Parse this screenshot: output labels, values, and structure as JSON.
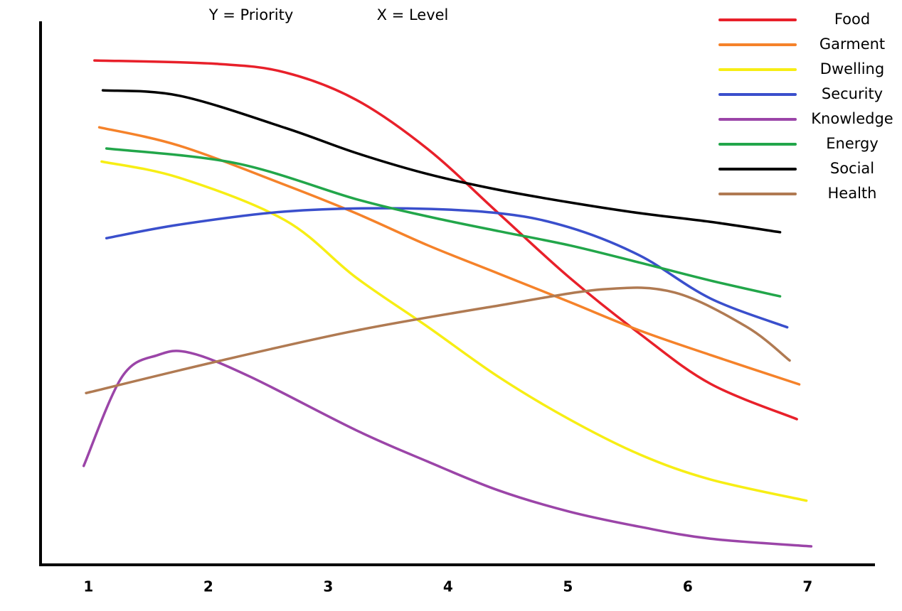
{
  "chart_data": {
    "type": "line",
    "annotations": [
      "Y = Priority",
      "X = Level"
    ],
    "xlim": [
      0.6,
      7.55
    ],
    "xticks": [
      1,
      2,
      3,
      4,
      5,
      6,
      7
    ],
    "ylim": [
      0,
      100
    ],
    "legend": "upper right",
    "series": [
      {
        "name": "Food",
        "color": "#e8202a",
        "x": [
          1.05,
          2.05,
          2.64,
          3.23,
          3.83,
          4.42,
          5.01,
          5.6,
          6.19,
          6.91
        ],
        "values": [
          92.8,
          92.2,
          90.6,
          85.6,
          76.5,
          64.7,
          52.9,
          42.5,
          33.3,
          26.8
        ]
      },
      {
        "name": "Garment",
        "color": "#f5822a",
        "x": [
          1.09,
          1.76,
          2.64,
          3.23,
          3.83,
          4.42,
          5.01,
          5.6,
          6.19,
          6.93
        ],
        "values": [
          80.5,
          77.1,
          69.9,
          64.7,
          58.8,
          53.6,
          48.4,
          43.1,
          38.6,
          33.2
        ]
      },
      {
        "name": "Dwelling",
        "color": "#f7ee14",
        "x": [
          1.11,
          1.76,
          2.64,
          3.23,
          3.83,
          4.42,
          5.01,
          5.6,
          6.19,
          6.99
        ],
        "values": [
          74.2,
          71.2,
          63.4,
          52.9,
          43.8,
          34.6,
          26.8,
          20.3,
          15.7,
          11.8
        ]
      },
      {
        "name": "Security",
        "color": "#3a4fcc",
        "x": [
          1.15,
          1.76,
          2.64,
          3.53,
          4.42,
          5.01,
          5.6,
          6.19,
          6.83
        ],
        "values": [
          60.1,
          62.6,
          65.0,
          65.6,
          64.7,
          62.1,
          56.9,
          49.0,
          43.7
        ]
      },
      {
        "name": "Knowledge",
        "color": "#9b45a8",
        "x": [
          0.96,
          1.28,
          1.58,
          1.85,
          2.35,
          3.23,
          3.83,
          4.42,
          5.01,
          5.6,
          6.19,
          7.03
        ],
        "values": [
          18.2,
          34.6,
          38.6,
          39.0,
          34.6,
          24.8,
          19.0,
          13.7,
          9.8,
          7.0,
          4.8,
          3.4
        ]
      },
      {
        "name": "Energy",
        "color": "#22a64a",
        "x": [
          1.15,
          2.23,
          3.23,
          3.83,
          4.42,
          5.01,
          5.6,
          6.19,
          6.77
        ],
        "values": [
          76.6,
          73.9,
          67.3,
          64.1,
          61.4,
          58.8,
          55.6,
          52.3,
          49.4
        ]
      },
      {
        "name": "Social",
        "color": "#000000",
        "x": [
          1.12,
          1.76,
          2.64,
          3.23,
          3.83,
          4.42,
          5.01,
          5.6,
          6.19,
          6.77
        ],
        "values": [
          87.3,
          86.3,
          80.4,
          75.8,
          71.9,
          69.0,
          66.7,
          64.7,
          63.1,
          61.2
        ]
      },
      {
        "name": "Health",
        "color": "#b07a52",
        "x": [
          0.98,
          2.05,
          3.23,
          4.42,
          5.3,
          5.89,
          6.49,
          6.85
        ],
        "values": [
          31.6,
          37.3,
          43.1,
          47.7,
          50.7,
          50.1,
          43.8,
          37.6
        ]
      }
    ]
  }
}
